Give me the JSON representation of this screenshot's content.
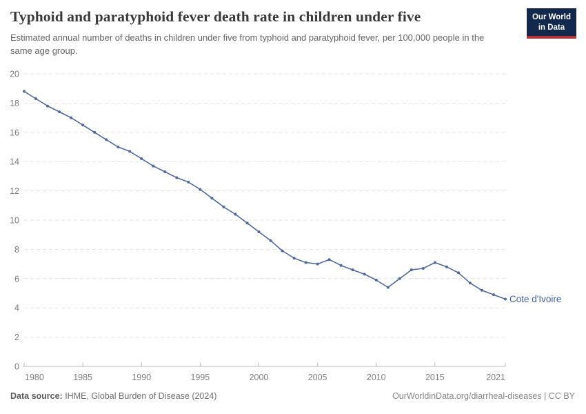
{
  "header": {
    "title": "Typhoid and paratyphoid fever death rate in children under five",
    "subtitle": "Estimated annual number of deaths in children under five from typhoid and paratyphoid fever, per 100,000 people in the same age group.",
    "logo": {
      "line1": "Our World",
      "line2": "in Data"
    }
  },
  "footer": {
    "source_label": "Data source:",
    "source_text": " IHME, Global Burden of Disease (2024)",
    "credit": "OurWorldinData.org/diarrheal-diseases | CC BY"
  },
  "colors": {
    "line": "#4d6a9d",
    "entity_label": "#3e63a7",
    "gridline": "#e1e1e1",
    "axis": "#b9b9b9",
    "tick_label": "#7d7d7d",
    "logo_bg": "#12294d",
    "logo_red": "#b5323f"
  },
  "chart_data": {
    "type": "line",
    "title": "Typhoid and paratyphoid fever death rate in children under five",
    "xlabel": "",
    "ylabel": "",
    "ylim": [
      0,
      20
    ],
    "xlim": [
      1980,
      2021
    ],
    "yticks": [
      0,
      2,
      4,
      6,
      8,
      10,
      12,
      14,
      16,
      18,
      20
    ],
    "xticks": [
      1980,
      1985,
      1990,
      1995,
      2000,
      2005,
      2010,
      2015,
      2021
    ],
    "grid": "horizontal-dashed",
    "legend_position": "end-of-line-label",
    "entity_label": "Cote d'Ivoire",
    "series": [
      {
        "name": "Cote d'Ivoire",
        "color": "#4d6a9d",
        "x": [
          1980,
          1981,
          1982,
          1983,
          1984,
          1985,
          1986,
          1987,
          1988,
          1989,
          1990,
          1991,
          1992,
          1993,
          1994,
          1995,
          1996,
          1997,
          1998,
          1999,
          2000,
          2001,
          2002,
          2003,
          2004,
          2005,
          2006,
          2007,
          2008,
          2009,
          2010,
          2011,
          2012,
          2013,
          2014,
          2015,
          2016,
          2017,
          2018,
          2019,
          2020,
          2021
        ],
        "values": [
          18.8,
          18.3,
          17.8,
          17.4,
          17.0,
          16.5,
          16.0,
          15.5,
          15.0,
          14.7,
          14.2,
          13.7,
          13.3,
          12.9,
          12.6,
          12.1,
          11.5,
          10.9,
          10.4,
          9.8,
          9.2,
          8.6,
          7.9,
          7.4,
          7.1,
          7.0,
          7.3,
          6.9,
          6.6,
          6.3,
          5.9,
          5.4,
          6.0,
          6.6,
          6.7,
          7.1,
          6.8,
          6.4,
          5.7,
          5.2,
          4.9,
          4.6
        ]
      }
    ]
  }
}
